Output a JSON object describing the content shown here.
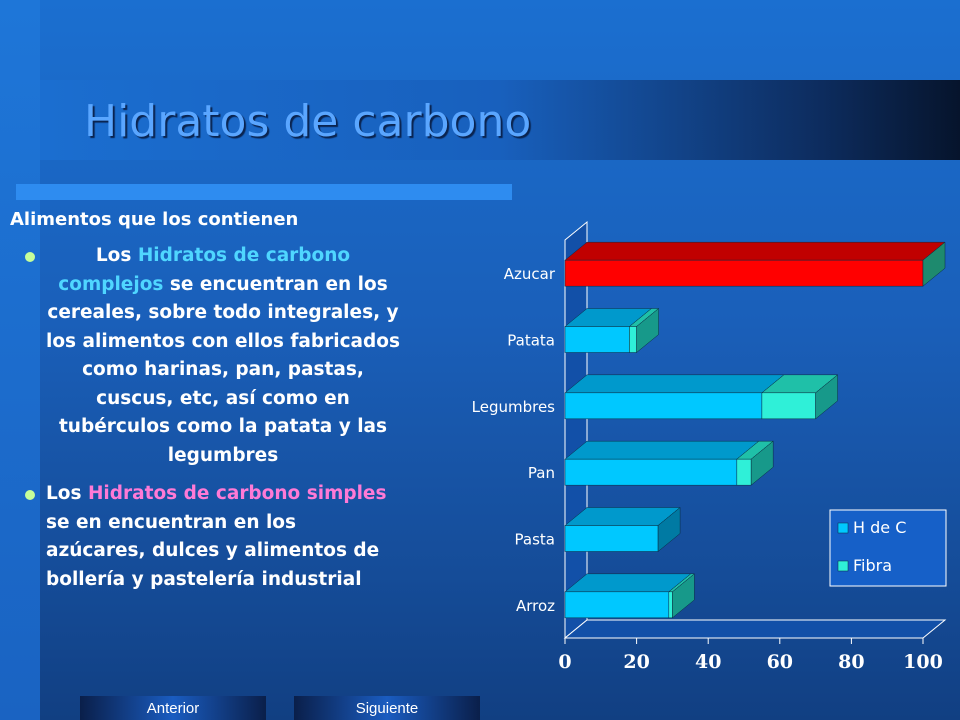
{
  "slide": {
    "title": "Hidratos de carbono",
    "subtitle": "Alimentos que los contienen",
    "bullet1": {
      "pre": "Los ",
      "highlight": "Hidratos de carbono complejos",
      "post": " se encuentran en los cereales, sobre todo integrales, y los alimentos con ellos fabricados como harinas, pan, pastas, cuscus, etc, así como en  tubérculos como la patata y las legumbres"
    },
    "bullet2": {
      "pre": "Los ",
      "highlight": "Hidratos de carbono simples",
      "post": " se en encuentran en los azúcares, dulces y alimentos   de bollería y pastelería industrial"
    }
  },
  "nav": {
    "prev_label": "Anterior",
    "next_label": "Siguiente"
  },
  "colors": {
    "hdc_face": "#00c8ff",
    "hdc_top": "#0099cc",
    "hdc_side": "#007aa3",
    "fibra_face": "#2ff0d8",
    "fibra_top": "#1fc0a8",
    "fibra_side": "#17998a",
    "azucar_face": "#ff0000",
    "azucar_top": "#c00000",
    "azucar_side": "#1e8a6e",
    "highlight_cyan": "#4fd6ff",
    "highlight_pink": "#ff7ad6",
    "bullet_dot": "#c6ff9a"
  },
  "chart_data": {
    "type": "bar",
    "orientation": "horizontal",
    "stacked": true,
    "categories": [
      "Azucar",
      "Patata",
      "Legumbres",
      "Pan",
      "Pasta",
      "Arroz"
    ],
    "series": [
      {
        "name": "H de C",
        "values": [
          100,
          18,
          55,
          48,
          26,
          29
        ]
      },
      {
        "name": "Fibra",
        "values": [
          0,
          2,
          15,
          4,
          0,
          1
        ]
      }
    ],
    "xticks": [
      "0",
      "20",
      "40",
      "60",
      "80",
      "100"
    ],
    "xlim": [
      0,
      100
    ],
    "grid": false,
    "legend_position": "bottom-right",
    "highlighted_category": "Azucar"
  }
}
